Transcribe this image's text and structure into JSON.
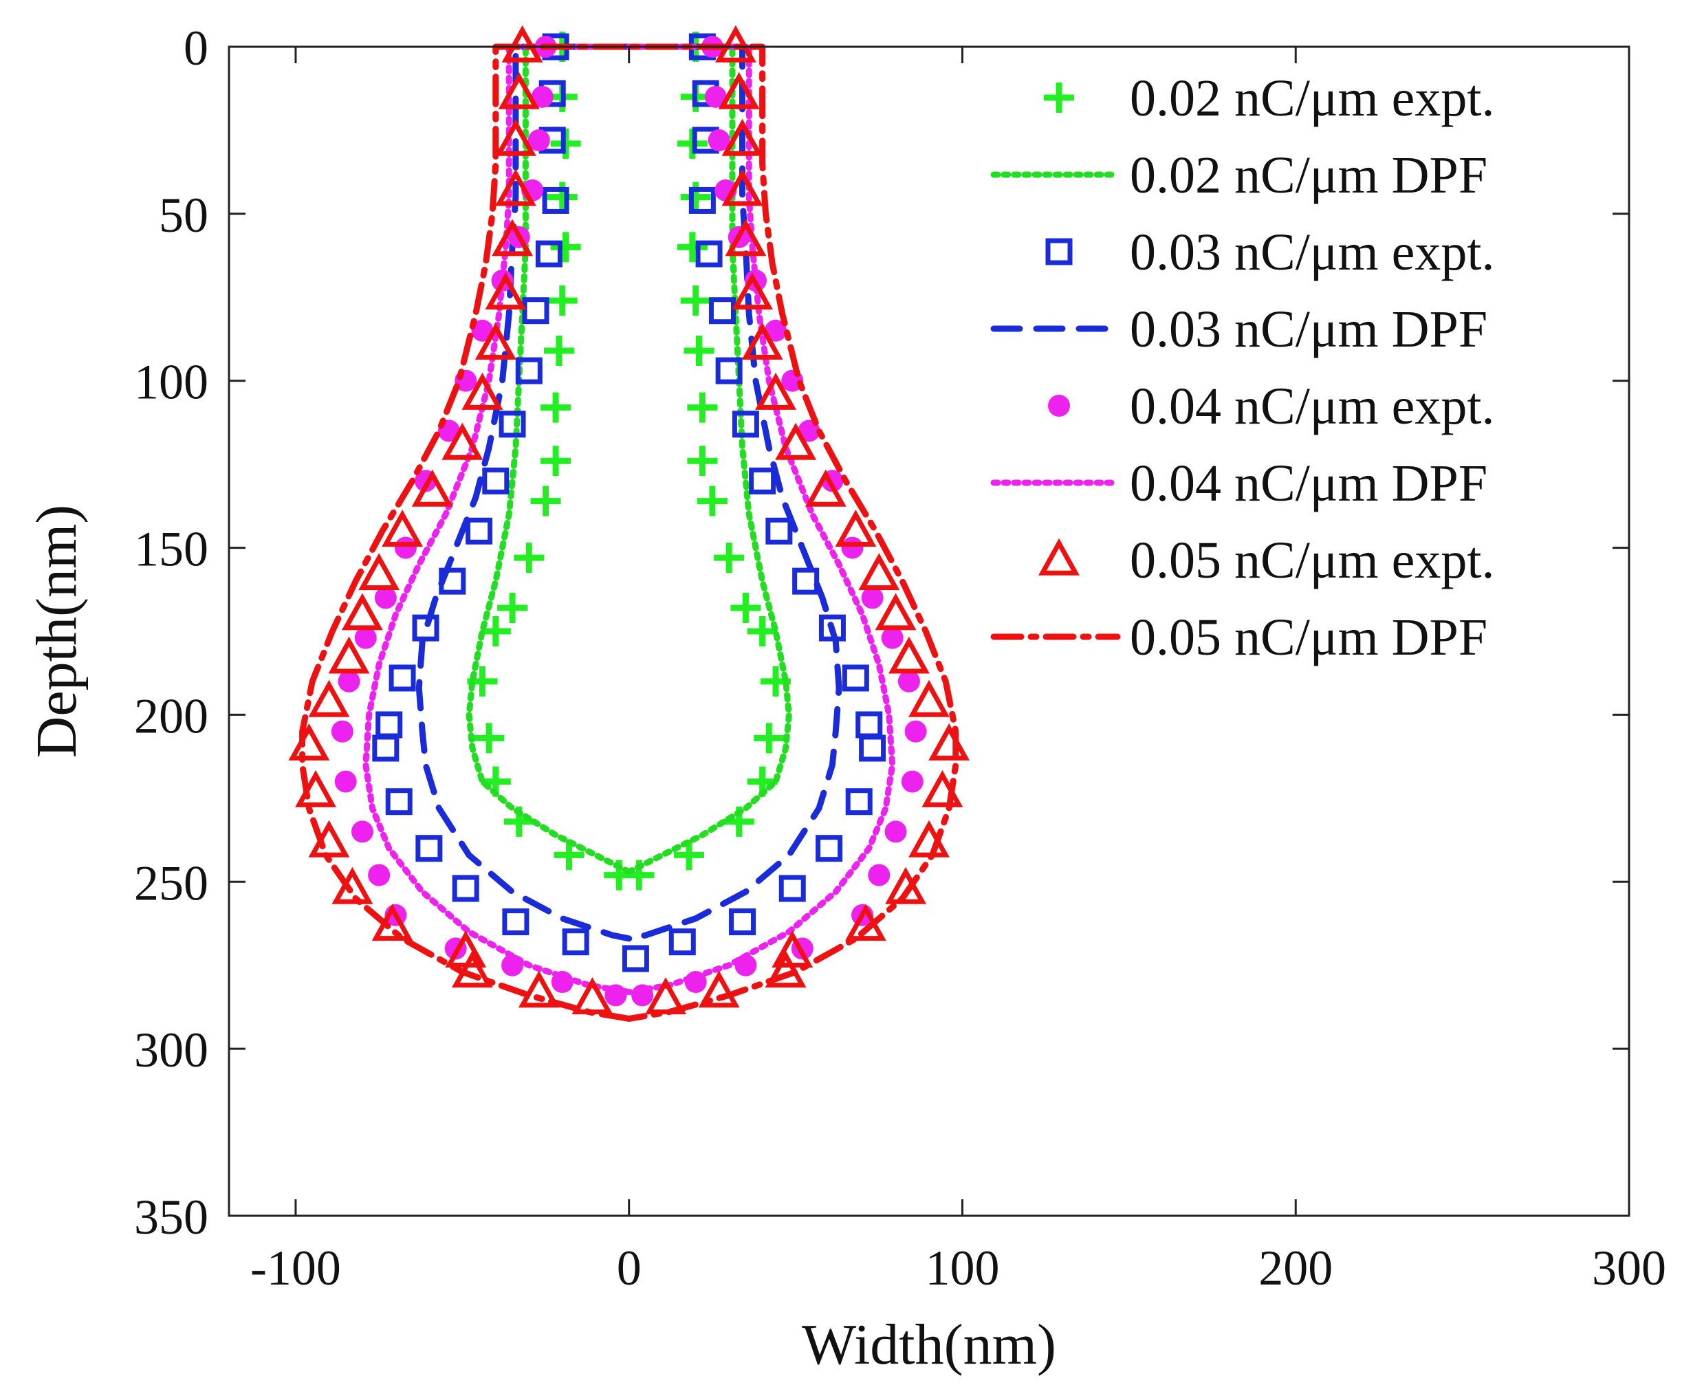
{
  "chart_data": {
    "type": "scatter",
    "title": "",
    "xlabel": "Width(nm)",
    "ylabel": "Depth(nm)",
    "xlim": [
      -120,
      300
    ],
    "ylim": [
      0,
      350
    ],
    "y_reversed": true,
    "x_ticks": [
      -100,
      0,
      100,
      200,
      300
    ],
    "x_tick_labels": [
      "-100",
      "0",
      "100",
      "200",
      "300"
    ],
    "y_ticks": [
      0,
      50,
      100,
      150,
      200,
      250,
      300,
      350
    ],
    "y_tick_labels": [
      "0",
      "50",
      "100",
      "150",
      "200",
      "250",
      "300",
      "350"
    ],
    "grid": false,
    "legend_position": "top-right",
    "series": [
      {
        "name": "0.02 nC/μm expt.",
        "kind": "markers",
        "marker": "plus",
        "color": "#22ee22",
        "right_half": [
          [
            20,
            0
          ],
          [
            20,
            15
          ],
          [
            19,
            29
          ],
          [
            20,
            45
          ],
          [
            19,
            60
          ],
          [
            20,
            76
          ],
          [
            21,
            91
          ],
          [
            22,
            108
          ],
          [
            22,
            124
          ],
          [
            25,
            136
          ],
          [
            30,
            153
          ],
          [
            35,
            168
          ],
          [
            40,
            175
          ],
          [
            44,
            190
          ],
          [
            42,
            207
          ],
          [
            40,
            220
          ],
          [
            33,
            232
          ],
          [
            18,
            242
          ],
          [
            3,
            248
          ]
        ]
      },
      {
        "name": "0.02 nC/μm DPF",
        "kind": "line",
        "dash": "dotted",
        "color": "#22dd22",
        "right_half": [
          [
            31,
            0
          ],
          [
            31,
            20
          ],
          [
            31,
            40
          ],
          [
            31,
            60
          ],
          [
            32,
            80
          ],
          [
            33,
            100
          ],
          [
            34,
            120
          ],
          [
            36,
            140
          ],
          [
            40,
            160
          ],
          [
            44,
            175
          ],
          [
            47,
            190
          ],
          [
            48,
            200
          ],
          [
            47,
            210
          ],
          [
            44,
            220
          ],
          [
            35,
            228
          ],
          [
            22,
            236
          ],
          [
            10,
            242
          ],
          [
            2,
            246
          ],
          [
            0,
            247
          ]
        ]
      },
      {
        "name": "0.03 nC/μm expt.",
        "kind": "markers",
        "marker": "square",
        "color": "#1a2bd9",
        "right_half": [
          [
            22,
            0
          ],
          [
            23,
            14
          ],
          [
            23,
            28
          ],
          [
            22,
            46
          ],
          [
            24,
            62
          ],
          [
            28,
            79
          ],
          [
            30,
            97
          ],
          [
            35,
            113
          ],
          [
            40,
            130
          ],
          [
            45,
            145
          ],
          [
            53,
            160
          ],
          [
            61,
            174
          ],
          [
            68,
            189
          ],
          [
            72,
            203
          ],
          [
            73,
            210
          ],
          [
            69,
            226
          ],
          [
            60,
            240
          ],
          [
            49,
            252
          ],
          [
            34,
            262
          ],
          [
            16,
            268
          ],
          [
            2,
            273
          ]
        ]
      },
      {
        "name": "0.03 nC/μm DPF",
        "kind": "line",
        "dash": "dashed",
        "color": "#1a2bd9",
        "right_half": [
          [
            34,
            0
          ],
          [
            34,
            15
          ],
          [
            34,
            30
          ],
          [
            34,
            45
          ],
          [
            35,
            60
          ],
          [
            36,
            80
          ],
          [
            38,
            100
          ],
          [
            42,
            120
          ],
          [
            46,
            135
          ],
          [
            52,
            150
          ],
          [
            58,
            165
          ],
          [
            62,
            178
          ],
          [
            63,
            192
          ],
          [
            62,
            205
          ],
          [
            61,
            215
          ],
          [
            57,
            228
          ],
          [
            48,
            242
          ],
          [
            35,
            253
          ],
          [
            20,
            261
          ],
          [
            5,
            266
          ],
          [
            0,
            267
          ]
        ]
      },
      {
        "name": "0.04 nC/μm expt.",
        "kind": "markers",
        "marker": "circle",
        "color": "#ee22ee",
        "right_half": [
          [
            25,
            0
          ],
          [
            26,
            15
          ],
          [
            27,
            28
          ],
          [
            29,
            43
          ],
          [
            33,
            57
          ],
          [
            38,
            70
          ],
          [
            44,
            85
          ],
          [
            49,
            100
          ],
          [
            54,
            115
          ],
          [
            61,
            130
          ],
          [
            67,
            150
          ],
          [
            73,
            165
          ],
          [
            79,
            177
          ],
          [
            84,
            190
          ],
          [
            86,
            205
          ],
          [
            85,
            220
          ],
          [
            80,
            235
          ],
          [
            75,
            248
          ],
          [
            70,
            260
          ],
          [
            52,
            270
          ],
          [
            35,
            275
          ],
          [
            20,
            280
          ],
          [
            4,
            284
          ]
        ]
      },
      {
        "name": "0.04 nC/μm DPF",
        "kind": "line",
        "dash": "dotted",
        "color": "#ee22ee",
        "right_half": [
          [
            36,
            0
          ],
          [
            36,
            15
          ],
          [
            36,
            30
          ],
          [
            36,
            45
          ],
          [
            37,
            60
          ],
          [
            39,
            80
          ],
          [
            42,
            100
          ],
          [
            47,
            120
          ],
          [
            55,
            140
          ],
          [
            63,
            155
          ],
          [
            70,
            170
          ],
          [
            75,
            185
          ],
          [
            78,
            200
          ],
          [
            79,
            215
          ],
          [
            77,
            228
          ],
          [
            72,
            240
          ],
          [
            62,
            253
          ],
          [
            48,
            265
          ],
          [
            30,
            275
          ],
          [
            12,
            281
          ],
          [
            0,
            283
          ]
        ]
      },
      {
        "name": "0.05 nC/μm expt.",
        "kind": "markers",
        "marker": "triangle",
        "color": "#ee1111",
        "right_half": [
          [
            32,
            0
          ],
          [
            33,
            14
          ],
          [
            34,
            28
          ],
          [
            34,
            43
          ],
          [
            35,
            58
          ],
          [
            37,
            74
          ],
          [
            40,
            89
          ],
          [
            44,
            104
          ],
          [
            50,
            119
          ],
          [
            59,
            133
          ],
          [
            68,
            145
          ],
          [
            75,
            158
          ],
          [
            80,
            170
          ],
          [
            84,
            183
          ],
          [
            90,
            196
          ],
          [
            96,
            209
          ],
          [
            94,
            223
          ],
          [
            90,
            238
          ],
          [
            83,
            252
          ],
          [
            71,
            263
          ],
          [
            49,
            271
          ],
          [
            47,
            277
          ],
          [
            27,
            283
          ],
          [
            11,
            285
          ]
        ]
      },
      {
        "name": "0.05 nC/μm DPF",
        "kind": "line",
        "dash": "dashdot",
        "color": "#ee1111",
        "right_half": [
          [
            40,
            0
          ],
          [
            40,
            10
          ],
          [
            40,
            20
          ],
          [
            40,
            35
          ],
          [
            41,
            50
          ],
          [
            43,
            65
          ],
          [
            46,
            80
          ],
          [
            51,
            100
          ],
          [
            57,
            115
          ],
          [
            65,
            130
          ],
          [
            74,
            145
          ],
          [
            82,
            160
          ],
          [
            89,
            175
          ],
          [
            95,
            190
          ],
          [
            98,
            205
          ],
          [
            98,
            215
          ],
          [
            96,
            228
          ],
          [
            91,
            242
          ],
          [
            82,
            255
          ],
          [
            68,
            267
          ],
          [
            50,
            277
          ],
          [
            30,
            284
          ],
          [
            12,
            289
          ],
          [
            0,
            291
          ]
        ]
      }
    ]
  }
}
